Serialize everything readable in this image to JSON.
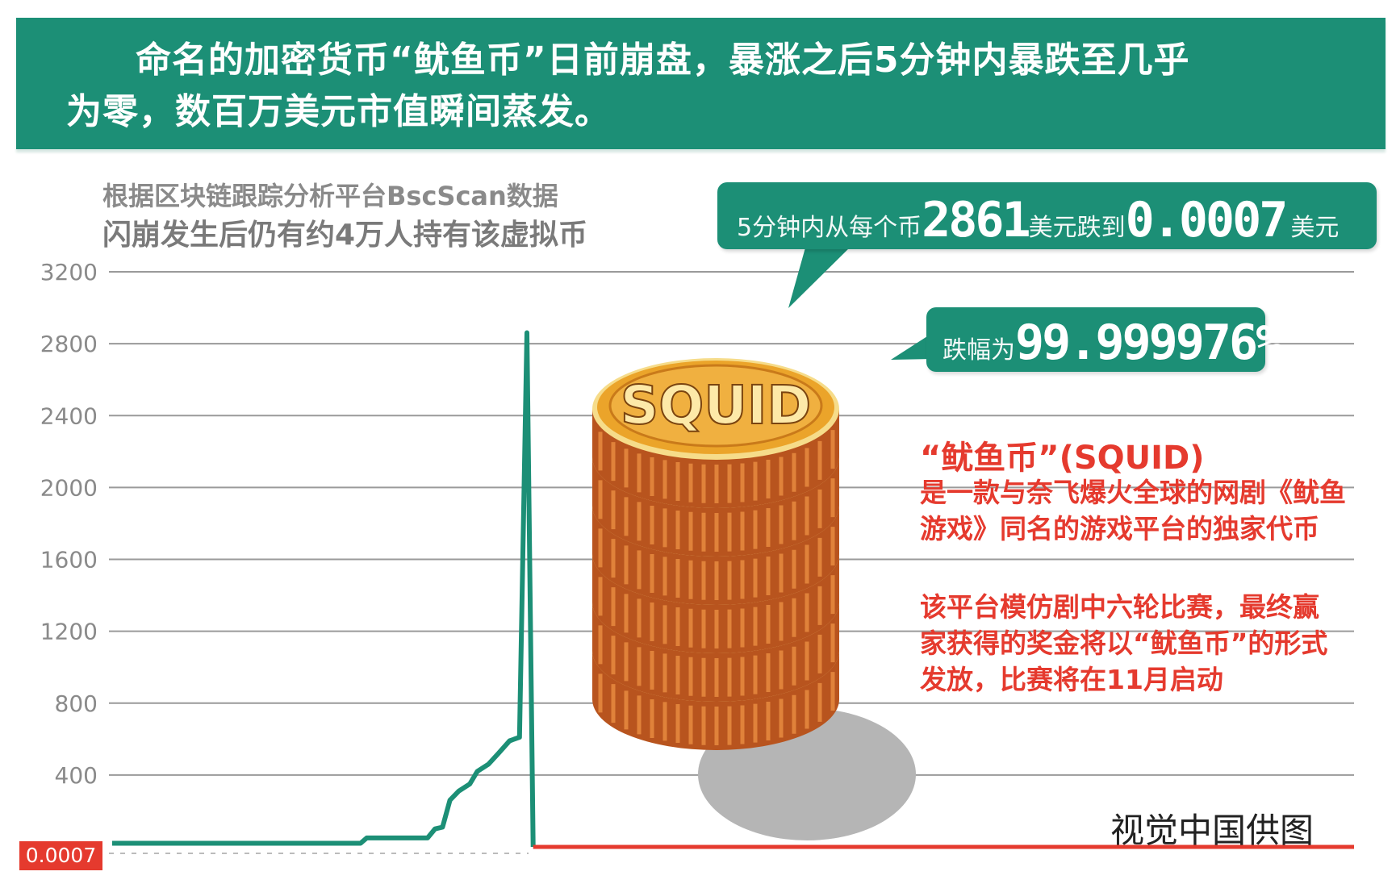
{
  "header": {
    "line1": "命名的加密货币“鱿鱼币”日前崩盘，暴涨之后5分钟内暴跌至几乎",
    "line2": "为零，数百万美元市值瞬间蒸发。"
  },
  "subtitle": {
    "line1": "根据区块链跟踪分析平台BscScan数据",
    "line2": "闪崩发生后仍有约4万人持有该虚拟币"
  },
  "callout_price": {
    "prefix": "5分钟内从每个币",
    "from_value": "2861",
    "mid": "美元跌到",
    "to_value": "0.0007",
    "suffix": "美元"
  },
  "callout_drop": {
    "prefix": "跌幅为",
    "value": "99.999976%"
  },
  "coin_label": "SQUID",
  "description": {
    "heading": "“鱿鱼币”(SQUID)",
    "para1": [
      "是一款与奈飞爆火全球的网剧《鱿鱼",
      "游戏》同名的游戏平台的独家代币"
    ],
    "para2": [
      "该平台模仿剧中六轮比赛，最终赢",
      "家获得的奖金将以“鱿鱼币”的形式",
      "发放，比赛将在11月启动"
    ]
  },
  "credit": "视觉中国供图",
  "colors": {
    "brand_green": "#1c8f76",
    "crash_red": "#e53a2e",
    "grid": "#9a9a9a",
    "coin_gold": "#e8a020"
  },
  "chart_data": {
    "type": "line",
    "title": "",
    "xlabel": "",
    "ylabel": "",
    "ylim": [
      0,
      3200
    ],
    "y_ticks": [
      "3200",
      "2800",
      "2400",
      "2000",
      "1600",
      "1200",
      "800",
      "400"
    ],
    "y_tick_values": [
      3200,
      2800,
      2400,
      2000,
      1600,
      1200,
      800,
      400
    ],
    "floor_label": "0.0007",
    "grid": true,
    "series": [
      {
        "color": "#1c8f76",
        "x": [
          0,
          20,
          20.5,
          25.4,
          26,
          26.6,
          27.2,
          27.9,
          28.8,
          29.4,
          30.3,
          31.1,
          32,
          32.8,
          33.4,
          33.9
        ],
        "y": [
          20,
          20,
          50,
          50,
          100,
          110,
          260,
          310,
          350,
          420,
          460,
          520,
          590,
          610,
          2861,
          0.0007
        ]
      },
      {
        "color": "#e53a2e",
        "x": [
          33.9,
          100
        ],
        "y": [
          0.0007,
          0.0007
        ]
      }
    ]
  }
}
